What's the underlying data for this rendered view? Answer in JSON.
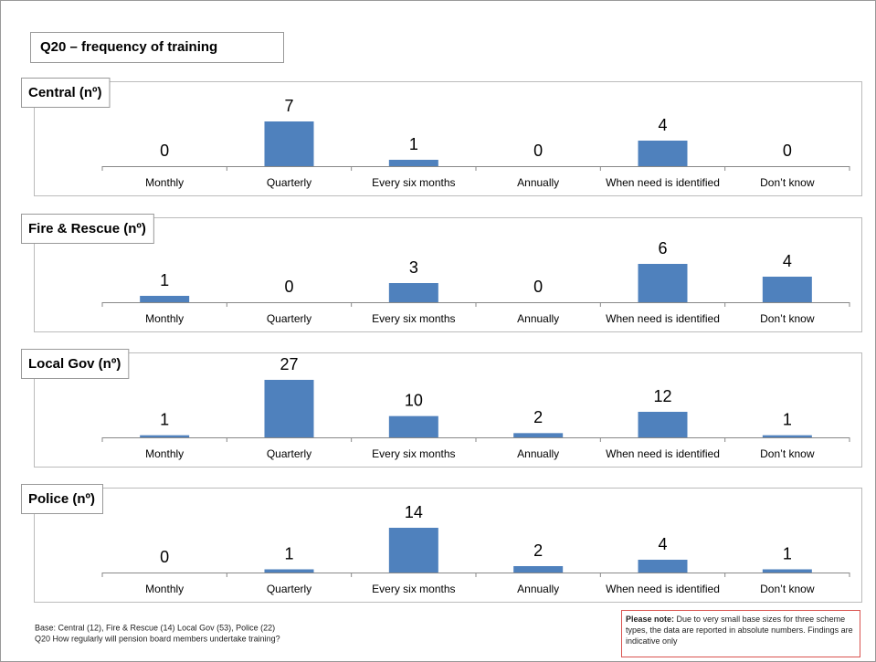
{
  "title": "Q20 – frequency of training",
  "notes": [
    "Base: Central (12), Fire & Rescue (14) Local Gov (53), Police (22)",
    "Q20 How regularly will pension board members undertake training?"
  ],
  "please_note": {
    "label": "Please note:",
    "text": "Due to very small base sizes  for three scheme types, the data are reported in absolute numbers.  Findings are indicative only"
  },
  "chart_data": [
    {
      "type": "bar",
      "title": "Central (nº)",
      "categories": [
        "Monthly",
        "Quarterly",
        "Every six months",
        "Annually",
        "When need is identified",
        "Don’t know"
      ],
      "values": [
        0,
        7,
        1,
        0,
        4,
        0
      ],
      "color": "#4f81bd",
      "ylim": [
        0,
        10
      ]
    },
    {
      "type": "bar",
      "title": "Fire & Rescue (nº)",
      "categories": [
        "Monthly",
        "Quarterly",
        "Every six months",
        "Annually",
        "When need is identified",
        "Don’t know"
      ],
      "values": [
        1,
        0,
        3,
        0,
        6,
        4
      ],
      "color": "#4f81bd",
      "ylim": [
        0,
        10
      ]
    },
    {
      "type": "bar",
      "title": "Local Gov (nº)",
      "categories": [
        "Monthly",
        "Quarterly",
        "Every six months",
        "Annually",
        "When need is identified",
        "Don’t know"
      ],
      "values": [
        1,
        27,
        10,
        2,
        12,
        1
      ],
      "color": "#4f81bd",
      "ylim": [
        0,
        30
      ]
    },
    {
      "type": "bar",
      "title": "Police (nº)",
      "categories": [
        "Monthly",
        "Quarterly",
        "Every six months",
        "Annually",
        "When need is identified",
        "Don’t know"
      ],
      "values": [
        0,
        1,
        14,
        2,
        4,
        1
      ],
      "color": "#4f81bd",
      "ylim": [
        0,
        20
      ]
    }
  ]
}
